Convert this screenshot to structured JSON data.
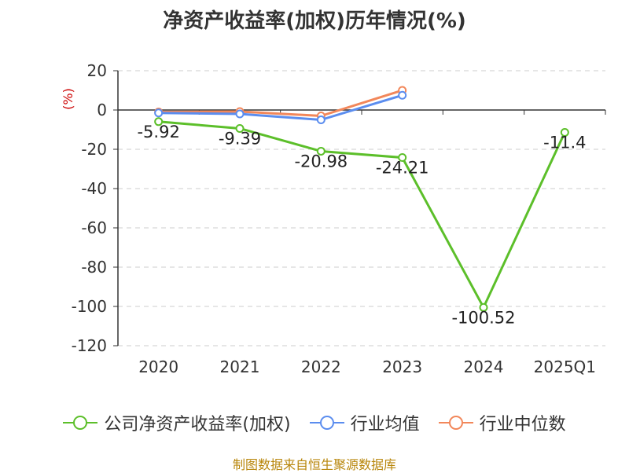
{
  "chart_data": {
    "type": "line",
    "title": "净资产收益率(加权)历年情况(%)",
    "ylabel": "(%)",
    "categories": [
      "2020",
      "2021",
      "2022",
      "2023",
      "2024",
      "2025Q1"
    ],
    "ylim": [
      -120,
      20
    ],
    "yticks": [
      20,
      0,
      -20,
      -40,
      -60,
      -80,
      -100,
      -120
    ],
    "grid": true,
    "legend_position": "bottom",
    "series": [
      {
        "name": "公司净资产收益率(加权)",
        "color": "#5cbf2a",
        "values": [
          -5.92,
          -9.39,
          -20.98,
          -24.21,
          -100.52,
          -11.4
        ],
        "labels": [
          "-5.92",
          "-9.39",
          "-20.98",
          "-24.21",
          "-100.52",
          "-11.4"
        ]
      },
      {
        "name": "行业均值",
        "color": "#5b8def",
        "values": [
          -1.5,
          -2.0,
          -5.0,
          7.5,
          null,
          null
        ]
      },
      {
        "name": "行业中位数",
        "color": "#f2875a",
        "values": [
          -1.0,
          -0.8,
          -3.0,
          10.0,
          null,
          null
        ]
      }
    ]
  },
  "source": "制图数据来自恒生聚源数据库"
}
